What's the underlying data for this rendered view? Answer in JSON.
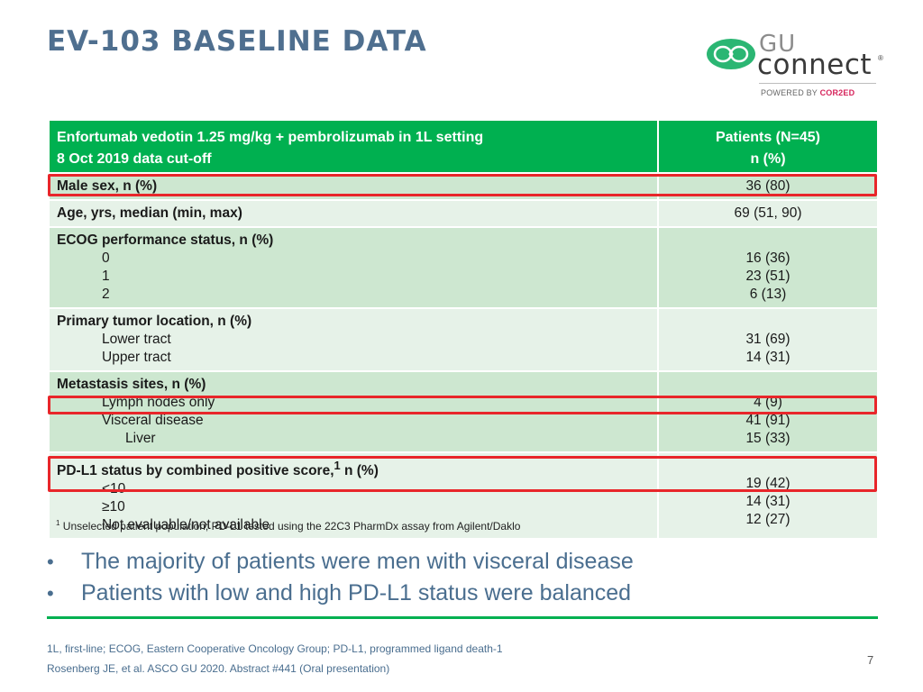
{
  "title": "EV-103 BASELINE DATA",
  "logo": {
    "gu": "GU",
    "connect": "connect",
    "reg": "®",
    "powered_by": "POWERED BY",
    "brand": "COR2ED"
  },
  "table": {
    "header": {
      "line1": "Enfortumab vedotin 1.25 mg/kg + pembrolizumab in 1L setting",
      "line2": "8 Oct 2019 data cut-off",
      "col2_line1": "Patients (N=45)",
      "col2_line2": "n (%)"
    },
    "male_sex": {
      "label": "Male sex, n (%)",
      "value": "36 (80)"
    },
    "age": {
      "label": "Age, yrs, median (min, max)",
      "value": "69 (51, 90)"
    },
    "ecog": {
      "label": "ECOG performance status, n (%)",
      "items": [
        {
          "label": "0",
          "value": "16 (36)"
        },
        {
          "label": "1",
          "value": "23 (51)"
        },
        {
          "label": "2",
          "value": "6 (13)"
        }
      ]
    },
    "tumor": {
      "label": "Primary tumor location, n (%)",
      "items": [
        {
          "label": "Lower tract",
          "value": "31 (69)"
        },
        {
          "label": "Upper tract",
          "value": "14 (31)"
        }
      ]
    },
    "metastasis": {
      "label": "Metastasis sites, n (%)",
      "items": [
        {
          "label": "Lymph nodes only",
          "value": "4 (9)"
        },
        {
          "label": "Visceral disease",
          "value": "41 (91)"
        },
        {
          "label": "Liver",
          "value": "15 (33)"
        }
      ]
    },
    "pdl1": {
      "label": "PD-L1 status by combined positive score,",
      "sup": "1",
      "label_suffix": " n (%)",
      "items": [
        {
          "label": "<10",
          "value": "19 (42)"
        },
        {
          "label": "≥10",
          "value": "14 (31)"
        },
        {
          "label": "Not evaluable/not available",
          "value": "12 (27)"
        }
      ]
    }
  },
  "footnote": {
    "sup": "1",
    "text": "Unselected patient population; PD-L1 tested using the 22C3 PharmDx assay from Agilent/Daklo"
  },
  "bullets": [
    "The majority of patients were men with visceral disease",
    "Patients with low and high PD-L1 status were balanced"
  ],
  "references": {
    "abbrev": "1L, first-line; ECOG, Eastern Cooperative Oncology Group; PD-L1, programmed ligand death-1",
    "citation": "Rosenberg JE, et al. ASCO GU 2020. Abstract #441 (Oral presentation)"
  },
  "page_number": "7",
  "colors": {
    "title": "#4f6f8f",
    "header_green": "#00b050",
    "row_dark": "#cde7d0",
    "row_light": "#e6f2e8",
    "highlight_red": "#e8262a"
  }
}
